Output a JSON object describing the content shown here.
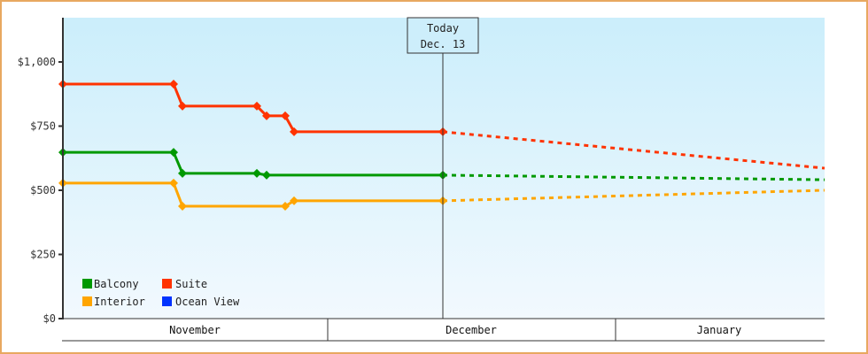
{
  "chart_data": {
    "type": "line",
    "title": "",
    "xlabel": "",
    "ylabel": "",
    "ylim": [
      0,
      1170
    ],
    "y_ticks": [
      {
        "value": 0,
        "label": "$0"
      },
      {
        "value": 250,
        "label": "$250"
      },
      {
        "value": 500,
        "label": "$500"
      },
      {
        "value": 750,
        "label": "$750"
      },
      {
        "value": 1000,
        "label": "$1,000"
      }
    ],
    "x_months": [
      "November",
      "December",
      "January"
    ],
    "today_marker": {
      "line1": "Today",
      "line2": "Dec. 13"
    },
    "legend": [
      {
        "name": "Balcony",
        "color": "#009900"
      },
      {
        "name": "Suite",
        "color": "#ff3300"
      },
      {
        "name": "Interior",
        "color": "#ffa500"
      },
      {
        "name": "Ocean View",
        "color": "#0033ff"
      }
    ],
    "series": [
      {
        "name": "Suite",
        "color": "#ff3300",
        "historical": [
          [
            71,
            914
          ],
          [
            196,
            914
          ],
          [
            206,
            828
          ],
          [
            290,
            828
          ],
          [
            301,
            790
          ],
          [
            322,
            790
          ],
          [
            332,
            728
          ],
          [
            500,
            728
          ]
        ],
        "projected": [
          [
            500,
            728
          ],
          [
            931,
            586
          ]
        ]
      },
      {
        "name": "Balcony",
        "color": "#009900",
        "historical": [
          [
            71,
            648
          ],
          [
            196,
            648
          ],
          [
            206,
            566
          ],
          [
            290,
            566
          ],
          [
            301,
            559
          ],
          [
            500,
            559
          ]
        ],
        "projected": [
          [
            500,
            559
          ],
          [
            931,
            541
          ]
        ]
      },
      {
        "name": "Interior",
        "color": "#ffa500",
        "historical": [
          [
            71,
            528
          ],
          [
            196,
            528
          ],
          [
            206,
            438
          ],
          [
            322,
            438
          ],
          [
            332,
            459
          ],
          [
            500,
            459
          ]
        ],
        "projected": [
          [
            500,
            459
          ],
          [
            931,
            500
          ]
        ]
      },
      {
        "name": "Ocean View",
        "color": "#0033ff",
        "historical": [],
        "projected": []
      }
    ]
  }
}
